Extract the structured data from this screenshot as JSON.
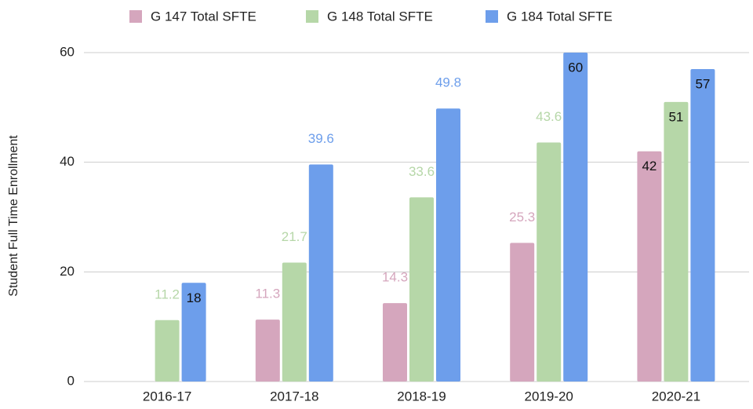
{
  "chart_data": {
    "type": "bar",
    "y_axis_label": "Student Full Time Enrollment",
    "categories": [
      "2016-17",
      "2017-18",
      "2018-19",
      "2019-20",
      "2020-21"
    ],
    "series": [
      {
        "name": "G 147 Total SFTE",
        "color": "#d5a6bd",
        "values": [
          null,
          11.3,
          14.3,
          25.3,
          42
        ]
      },
      {
        "name": "G 148 Total SFTE",
        "color": "#b6d7a8",
        "values": [
          11.2,
          21.7,
          33.6,
          43.6,
          51
        ]
      },
      {
        "name": "G 184 Total SFTE",
        "color": "#6d9eeb",
        "values": [
          18,
          39.6,
          49.8,
          60,
          57
        ]
      }
    ],
    "ylim": [
      0,
      60
    ],
    "yticks": [
      0,
      20,
      40,
      60
    ],
    "grid": true,
    "legend": "top"
  }
}
